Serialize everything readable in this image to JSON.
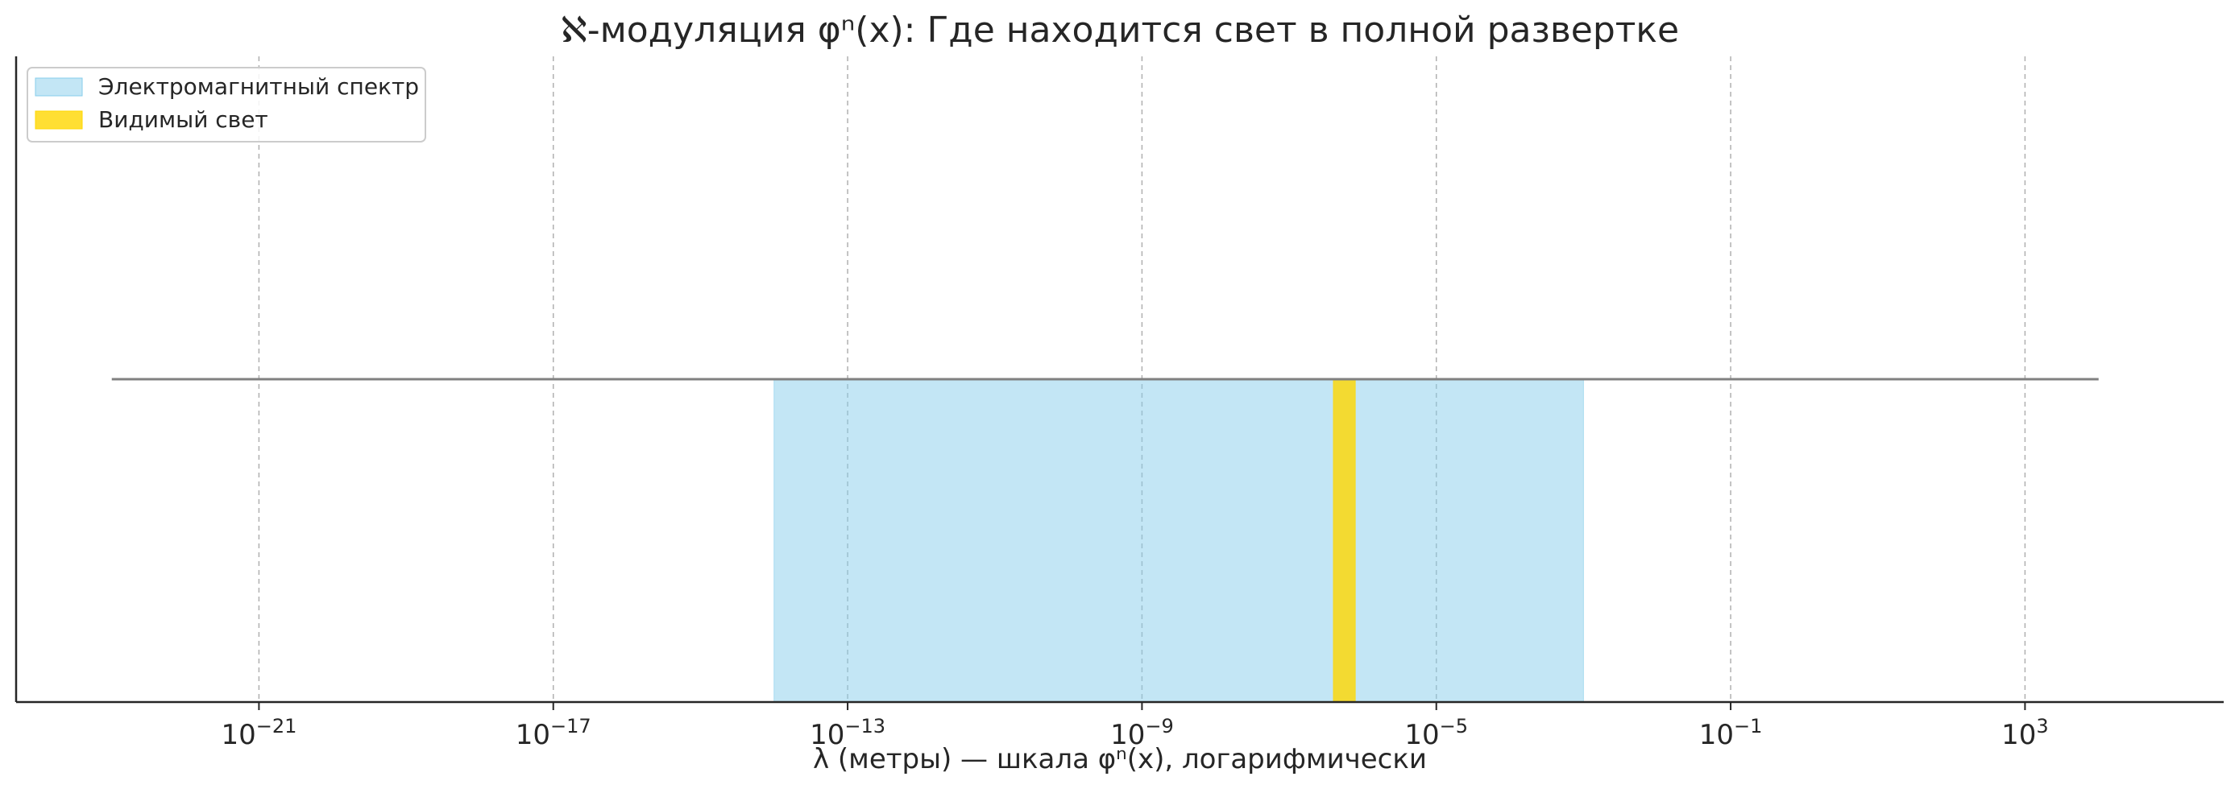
{
  "chart_data": {
    "type": "bar",
    "title": "ℵ-модуляция φⁿ(x): Где находится свет в полной развертке",
    "xlabel": "λ (метры) — шкала φⁿ(x), логарифмически",
    "ylabel": "",
    "xscale": "log",
    "xlim_log10": [
      -24.3,
      5.7
    ],
    "grid": "x",
    "legend_position": "top-left",
    "xticks": [
      {
        "base": "10",
        "exponent": "−21",
        "log10": -21
      },
      {
        "base": "10",
        "exponent": "−17",
        "log10": -17
      },
      {
        "base": "10",
        "exponent": "−13",
        "log10": -13
      },
      {
        "base": "10",
        "exponent": "−9",
        "log10": -9
      },
      {
        "base": "10",
        "exponent": "−5",
        "log10": -5
      },
      {
        "base": "10",
        "exponent": "−1",
        "log10": -1
      },
      {
        "base": "10",
        "exponent": "3",
        "log10": 3
      }
    ],
    "baseline_line": {
      "from_log10": -23,
      "to_log10": 4,
      "y": 1,
      "color": "#808080"
    },
    "series": [
      {
        "name": "Электромагнитный спектр",
        "from_log10": -14,
        "to_log10": -3,
        "height": 1,
        "color": "#87CEEB"
      },
      {
        "name": "Видимый свет",
        "from_log10": -6.4,
        "to_log10": -6.1,
        "height": 1,
        "color": "#FFD700"
      }
    ],
    "ylim": [
      0,
      2
    ]
  }
}
